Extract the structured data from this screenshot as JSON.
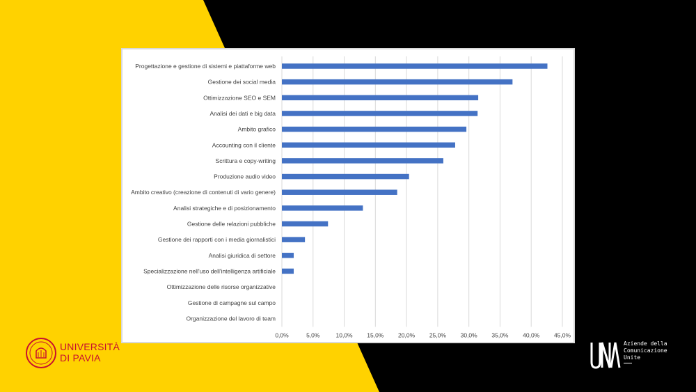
{
  "colors": {
    "background": "#000000",
    "accent_yellow": "#ffd200",
    "bar": "#4472c4",
    "gridline": "#d9d9d9",
    "university_red": "#c8102e"
  },
  "chart_data": {
    "type": "bar",
    "orientation": "horizontal",
    "categories": [
      "Progettazione e gestione di sistemi e piattaforme web",
      "Gestione dei social media",
      "Ottimizzazione SEO e SEM",
      "Analisi dei dati e big data",
      "Ambito grafico",
      "Accounting con il cliente",
      "Scrittura e copy-writing",
      "Produzione audio video",
      "Ambito creativo (creazione di contenuti di vario genere)",
      "Analisi strategiche e di posizionamento",
      "Gestione delle relazioni pubbliche",
      "Gestione dei rapporti con i media giornalistici",
      "Analisi giuridica di settore",
      "Specializzazione nell'uso dell'intelligenza artificiale",
      "Ottimizzazione delle risorse organizzative",
      "Gestione di campagne sul campo",
      "Organizzazione del lavoro di team"
    ],
    "values": [
      42.6,
      37.0,
      31.5,
      31.4,
      29.6,
      27.8,
      25.9,
      20.4,
      18.5,
      13.0,
      7.4,
      3.7,
      1.9,
      1.9,
      0,
      0,
      0
    ],
    "xlim": [
      0,
      45
    ],
    "tick_values": [
      0,
      5,
      10,
      15,
      20,
      25,
      30,
      35,
      40,
      45
    ],
    "tick_labels": [
      "0,0%",
      "5,0%",
      "10,0%",
      "15,0%",
      "20,0%",
      "25,0%",
      "30,0%",
      "35,0%",
      "40,0%",
      "45,0%"
    ],
    "grid": "vertical",
    "title": "",
    "xlabel": "",
    "ylabel": ""
  },
  "logos": {
    "university": {
      "line1": "UNIVERSITÀ",
      "line2": "DI PAVIA"
    },
    "una": {
      "mark": "UNA",
      "line1": "Aziende della",
      "line2": "Comunicazione",
      "line3": "Unite"
    }
  }
}
